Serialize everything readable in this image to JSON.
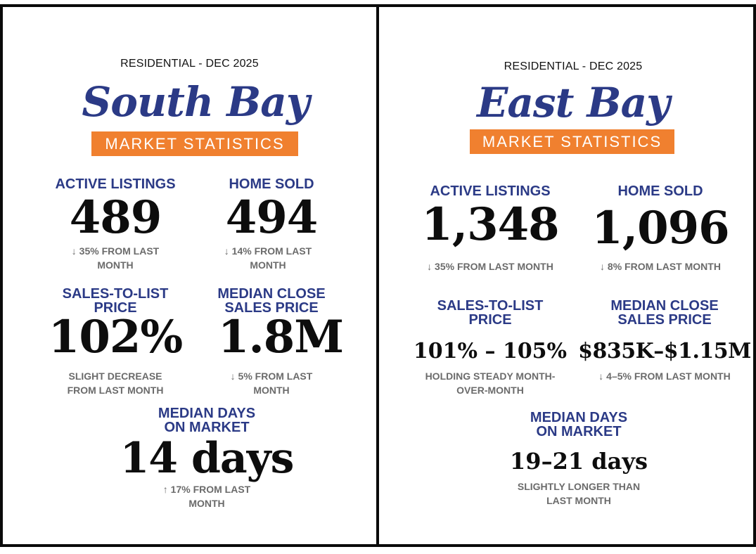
{
  "south_bay": {
    "residential": "RESIDENTIAL - DEC 2025",
    "region": "South Bay",
    "banner": "MARKET STATISTICS",
    "active_listings": {
      "label": "ACTIVE LISTINGS",
      "value": "489",
      "note_l1": "↓ 35% FROM LAST",
      "note_l2": "MONTH"
    },
    "home_sold": {
      "label": "HOME SOLD",
      "value": "494",
      "note_l1": "↓ 14% FROM LAST",
      "note_l2": "MONTH"
    },
    "sales_to_list": {
      "label_l1": "SALES-TO-LIST",
      "label_l2": "PRICE",
      "value": "102%",
      "note_l1": "SLIGHT DECREASE",
      "note_l2": "FROM LAST MONTH"
    },
    "median_close": {
      "label_l1": "MEDIAN CLOSE",
      "label_l2": "SALES PRICE",
      "value": "1.8M",
      "note_l1": "↓ 5% FROM LAST",
      "note_l2": "MONTH"
    },
    "median_days": {
      "label_l1": "MEDIAN DAYS",
      "label_l2": "ON MARKET",
      "value": "14 days",
      "note_l1": "↑ 17% FROM LAST",
      "note_l2": "MONTH"
    }
  },
  "east_bay": {
    "residential": "RESIDENTIAL - DEC 2025",
    "region": "East Bay",
    "banner": "MARKET STATISTICS",
    "active_listings": {
      "label": "ACTIVE LISTINGS",
      "value": "1,348",
      "note_l1": "↓ 35% FROM LAST MONTH"
    },
    "home_sold": {
      "label": "HOME SOLD",
      "value": "1,096",
      "note_l1": "↓ 8% FROM LAST MONTH"
    },
    "sales_to_list": {
      "label_l1": "SALES-TO-LIST",
      "label_l2": "PRICE",
      "value": "101% – 105%",
      "note_l1": "HOLDING STEADY MONTH-",
      "note_l2": "OVER-MONTH"
    },
    "median_close": {
      "label_l1": "MEDIAN CLOSE",
      "label_l2": "SALES PRICE",
      "value": "$835K–$1.15M",
      "note_l1": "↓ 4–5% FROM LAST MONTH"
    },
    "median_days": {
      "label_l1": "MEDIAN DAYS",
      "label_l2": "ON MARKET",
      "value": "19–21 days",
      "note_l1": "SLIGHTLY LONGER THAN",
      "note_l2": "LAST MONTH"
    }
  },
  "colors": {
    "navy": "#2b3a86",
    "orange": "#f0802f",
    "gray": "#6b6b6b",
    "black": "#0d0d0d"
  }
}
